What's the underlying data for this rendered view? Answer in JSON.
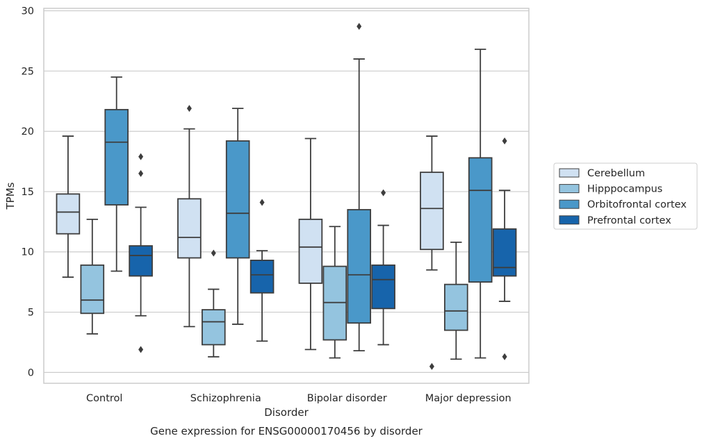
{
  "chart_data": {
    "type": "box",
    "title": "Gene expression for ENSG00000170456 by disorder",
    "xlabel": "Disorder",
    "ylabel": "TPMs",
    "ylim": [
      -0.9,
      30.2
    ],
    "yticks": [
      0,
      5,
      10,
      15,
      20,
      25,
      30
    ],
    "grid": "horizontal",
    "legend_position": "right",
    "categories": [
      "Control",
      "Schizophrenia",
      "Bipolar disorder",
      "Major depression"
    ],
    "series": [
      {
        "name": "Cerebellum",
        "color": "#d0e1f2",
        "boxes": [
          {
            "whislo": 7.9,
            "q1": 11.5,
            "med": 13.3,
            "q3": 14.8,
            "whishi": 19.6,
            "fliers": []
          },
          {
            "whislo": 3.8,
            "q1": 9.5,
            "med": 11.2,
            "q3": 14.4,
            "whishi": 20.2,
            "fliers": [
              21.9
            ]
          },
          {
            "whislo": 1.9,
            "q1": 7.4,
            "med": 10.4,
            "q3": 12.7,
            "whishi": 19.4,
            "fliers": []
          },
          {
            "whislo": 8.5,
            "q1": 10.2,
            "med": 13.6,
            "q3": 16.6,
            "whishi": 19.6,
            "fliers": [
              0.5
            ]
          }
        ]
      },
      {
        "name": "Hipppocampus",
        "color": "#94c4df",
        "boxes": [
          {
            "whislo": 3.2,
            "q1": 4.9,
            "med": 6.0,
            "q3": 8.9,
            "whishi": 12.7,
            "fliers": []
          },
          {
            "whislo": 1.3,
            "q1": 2.3,
            "med": 4.2,
            "q3": 5.2,
            "whishi": 6.9,
            "fliers": [
              9.9
            ]
          },
          {
            "whislo": 1.2,
            "q1": 2.7,
            "med": 5.8,
            "q3": 8.8,
            "whishi": 12.1,
            "fliers": []
          },
          {
            "whislo": 1.1,
            "q1": 3.5,
            "med": 5.1,
            "q3": 7.3,
            "whishi": 10.8,
            "fliers": []
          }
        ]
      },
      {
        "name": "Orbitofrontal cortex",
        "color": "#4a98c9",
        "boxes": [
          {
            "whislo": 8.4,
            "q1": 13.9,
            "med": 19.1,
            "q3": 21.8,
            "whishi": 24.5,
            "fliers": []
          },
          {
            "whislo": 4.0,
            "q1": 9.5,
            "med": 13.2,
            "q3": 19.2,
            "whishi": 21.9,
            "fliers": []
          },
          {
            "whislo": 1.8,
            "q1": 4.1,
            "med": 8.1,
            "q3": 13.5,
            "whishi": 26.0,
            "fliers": [
              28.7
            ]
          },
          {
            "whislo": 1.2,
            "q1": 7.5,
            "med": 15.1,
            "q3": 17.8,
            "whishi": 26.8,
            "fliers": []
          }
        ]
      },
      {
        "name": "Prefrontal cortex",
        "color": "#1764ab",
        "boxes": [
          {
            "whislo": 4.7,
            "q1": 8.0,
            "med": 9.7,
            "q3": 10.5,
            "whishi": 13.7,
            "fliers": [
              1.9,
              16.5,
              17.9
            ]
          },
          {
            "whislo": 2.6,
            "q1": 6.6,
            "med": 8.1,
            "q3": 9.3,
            "whishi": 10.1,
            "fliers": [
              14.1
            ]
          },
          {
            "whislo": 2.3,
            "q1": 5.3,
            "med": 7.7,
            "q3": 8.9,
            "whishi": 12.2,
            "fliers": [
              14.9
            ]
          },
          {
            "whislo": 5.9,
            "q1": 8.0,
            "med": 8.7,
            "q3": 11.9,
            "whishi": 15.1,
            "fliers": [
              1.3,
              19.2
            ]
          }
        ]
      }
    ]
  }
}
